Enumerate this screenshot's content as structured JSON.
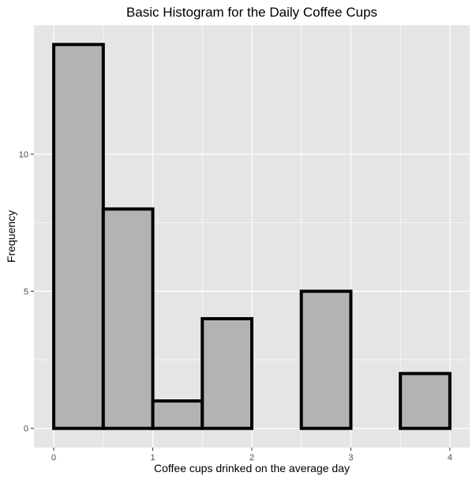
{
  "chart_data": {
    "type": "bar",
    "title": "Basic Histogram for the Daily Coffee Cups",
    "xlabel": "Coffee cups drinked on the average day",
    "ylabel": "Frequency",
    "bins": [
      {
        "x0": 0.0,
        "x1": 0.5,
        "count": 14
      },
      {
        "x0": 0.5,
        "x1": 1.0,
        "count": 8
      },
      {
        "x0": 1.0,
        "x1": 1.5,
        "count": 1
      },
      {
        "x0": 1.5,
        "x1": 2.0,
        "count": 4
      },
      {
        "x0": 2.0,
        "x1": 2.5,
        "count": 0
      },
      {
        "x0": 2.5,
        "x1": 3.0,
        "count": 5
      },
      {
        "x0": 3.0,
        "x1": 3.5,
        "count": 0
      },
      {
        "x0": 3.5,
        "x1": 4.0,
        "count": 2
      }
    ],
    "xlim": [
      -0.2,
      4.2
    ],
    "ylim": [
      -0.7,
      14.7
    ],
    "x_ticks": [
      0,
      1,
      2,
      3,
      4
    ],
    "x_tick_labels": [
      "0",
      "1",
      "2",
      "3",
      "4"
    ],
    "y_ticks": [
      0,
      5,
      10
    ],
    "y_tick_labels": [
      "0",
      "5",
      "10"
    ],
    "grid": true,
    "colors": {
      "panel_background": "#e5e5e5",
      "grid_line": "#ffffff",
      "bar_fill": "#b3b3b3",
      "bar_outline": "#000000",
      "tick_mark": "#333333"
    }
  }
}
